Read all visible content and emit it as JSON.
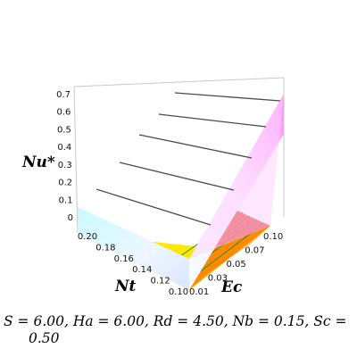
{
  "chart_data": {
    "type": "surface3d",
    "z_label": "Nu*",
    "x_label": "Nt",
    "y_label": "Ec",
    "z_ticks": [
      "0",
      "0.1",
      "0.2",
      "0.3",
      "0.4",
      "0.5",
      "0.6",
      "0.7"
    ],
    "x_ticks": [
      "0.20",
      "0.18",
      "0.16",
      "0.14",
      "0.12",
      "0.10"
    ],
    "y_ticks": [
      "0.01",
      "0.03",
      "0.05",
      "0.07",
      "0.10"
    ],
    "z_range": [
      0,
      0.7
    ],
    "x_range": [
      0.1,
      0.2
    ],
    "y_range": [
      0.01,
      0.1
    ],
    "colormap": [
      "#ffe400",
      "#ff9a00",
      "#ff3030",
      "#f0ffff",
      "#ff66ff"
    ],
    "grid": true
  },
  "caption": {
    "line1": "S = 6.00, Ha = 6.00, Rd = 4.50, Nb = 0.15, Sc =",
    "line2": "0.50"
  }
}
